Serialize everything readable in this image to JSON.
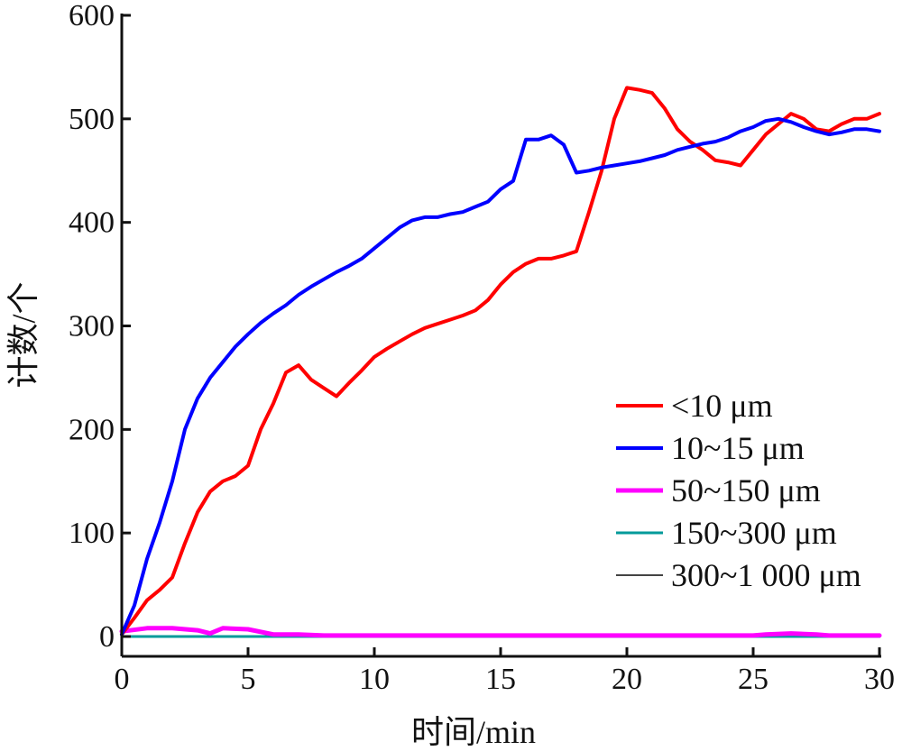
{
  "chart_data": {
    "type": "line",
    "xlabel": "时间/min",
    "ylabel": "计数/个",
    "xlim": [
      0,
      30
    ],
    "ylim": [
      0,
      600
    ],
    "xticks": [
      "0",
      "5",
      "10",
      "15",
      "20",
      "25",
      "30"
    ],
    "yticks": [
      "0",
      "100",
      "200",
      "300",
      "400",
      "500",
      "600"
    ],
    "grid": false,
    "legend_position": "lower-right",
    "series": [
      {
        "name": "<10 μm",
        "color": "#ff0000",
        "x": [
          0,
          0.5,
          1,
          1.5,
          2,
          2.5,
          3,
          3.5,
          4,
          4.5,
          5,
          5.5,
          6,
          6.5,
          7,
          7.5,
          8,
          8.5,
          9,
          9.5,
          10,
          10.5,
          11,
          11.5,
          12,
          12.5,
          13,
          13.5,
          14,
          14.5,
          15,
          15.5,
          16,
          16.5,
          17,
          17.5,
          18,
          18.5,
          19,
          19.5,
          20,
          20.5,
          21,
          21.5,
          22,
          22.5,
          23,
          23.5,
          24,
          24.5,
          25,
          25.5,
          26,
          26.5,
          27,
          27.5,
          28,
          28.5,
          29,
          29.5,
          30
        ],
        "y": [
          2,
          18,
          35,
          45,
          57,
          90,
          120,
          140,
          150,
          155,
          165,
          200,
          225,
          255,
          262,
          248,
          240,
          232,
          245,
          257,
          270,
          278,
          285,
          292,
          298,
          302,
          306,
          310,
          315,
          325,
          340,
          352,
          360,
          365,
          365,
          368,
          372,
          410,
          450,
          500,
          530,
          528,
          525,
          510,
          490,
          478,
          470,
          460,
          458,
          455,
          470,
          485,
          495,
          505,
          500,
          490,
          488,
          495,
          500,
          500,
          505
        ]
      },
      {
        "name": "10~15 μm",
        "color": "#0000ff",
        "x": [
          0,
          0.5,
          1,
          1.5,
          2,
          2.5,
          3,
          3.5,
          4,
          4.5,
          5,
          5.5,
          6,
          6.5,
          7,
          7.5,
          8,
          8.5,
          9,
          9.5,
          10,
          10.5,
          11,
          11.5,
          12,
          12.5,
          13,
          13.5,
          14,
          14.5,
          15,
          15.5,
          16,
          16.5,
          17,
          17.5,
          18,
          18.5,
          19,
          19.5,
          20,
          20.5,
          21,
          21.5,
          22,
          22.5,
          23,
          23.5,
          24,
          24.5,
          25,
          25.5,
          26,
          26.5,
          27,
          27.5,
          28,
          28.5,
          29,
          29.5,
          30
        ],
        "y": [
          2,
          30,
          75,
          110,
          150,
          200,
          230,
          250,
          265,
          280,
          292,
          303,
          312,
          320,
          330,
          338,
          345,
          352,
          358,
          365,
          375,
          385,
          395,
          402,
          405,
          405,
          408,
          410,
          415,
          420,
          432,
          440,
          480,
          480,
          484,
          475,
          448,
          450,
          453,
          455,
          457,
          459,
          462,
          465,
          470,
          473,
          476,
          478,
          482,
          488,
          492,
          498,
          500,
          497,
          492,
          488,
          485,
          487,
          490,
          490,
          488
        ]
      },
      {
        "name": "50~150 μm",
        "color": "#ff00ff",
        "x": [
          0,
          1,
          2,
          3,
          3.5,
          4,
          5,
          6,
          7,
          8,
          10,
          15,
          20,
          25,
          25.5,
          26.5,
          27.5,
          28,
          30
        ],
        "y": [
          5,
          8,
          8,
          6,
          3,
          8,
          7,
          2,
          2,
          1,
          1,
          1,
          1,
          1,
          2,
          3,
          2,
          1,
          1
        ]
      },
      {
        "name": "150~300 μm",
        "color": "#009a9a",
        "x": [
          0,
          5,
          10,
          15,
          20,
          25,
          30
        ],
        "y": [
          0,
          0,
          0,
          0,
          0,
          0,
          0
        ]
      },
      {
        "name": "300~1 000 μm",
        "color": "#444444",
        "x": [
          0,
          5,
          10,
          15,
          20,
          25,
          30
        ],
        "y": [
          0,
          0,
          0,
          0,
          0,
          0,
          0
        ]
      }
    ]
  }
}
